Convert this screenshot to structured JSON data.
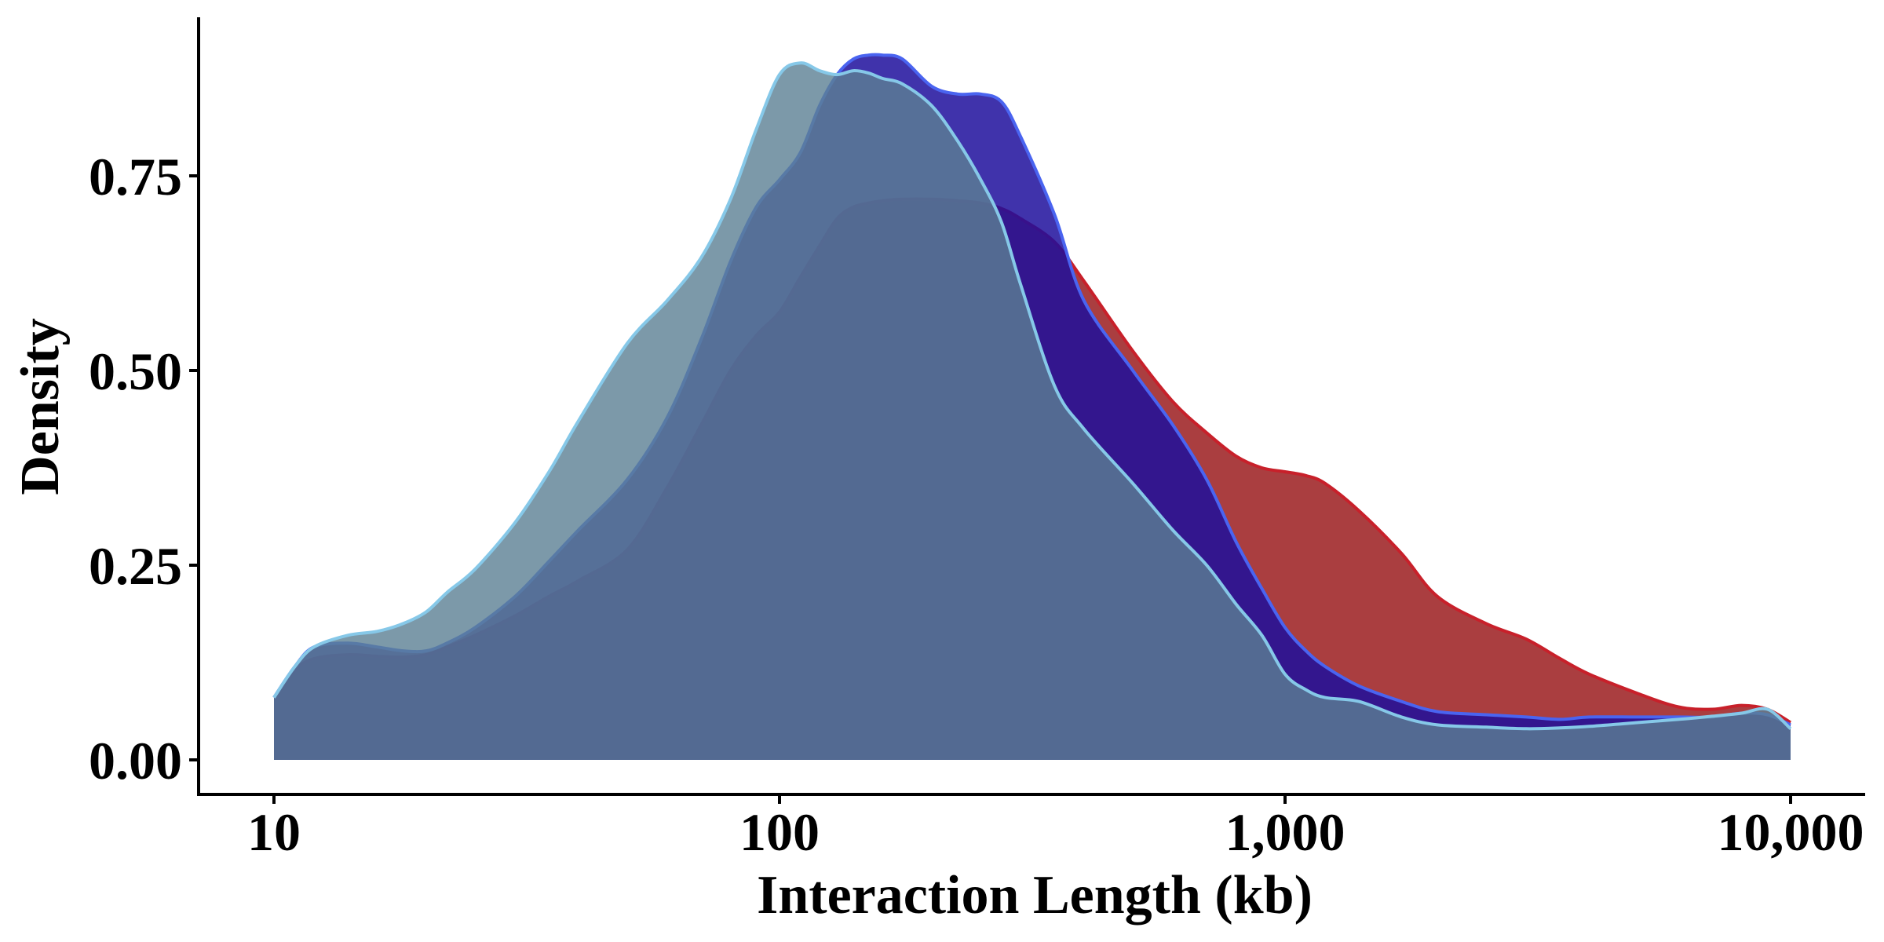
{
  "chart_data": {
    "type": "area",
    "title": "",
    "xlabel": "Interaction Length (kb)",
    "ylabel": "Density",
    "x_scale": "log10",
    "xlim": [
      10,
      10000
    ],
    "ylim": [
      0,
      0.92
    ],
    "x_ticks": [
      10,
      100,
      1000,
      10000
    ],
    "x_tick_labels": [
      "10",
      "100",
      "1,000",
      "10,000"
    ],
    "y_ticks": [
      0,
      0.25,
      0.5,
      0.75
    ],
    "y_tick_labels": [
      "0.00",
      "0.25",
      "0.50",
      "0.75"
    ],
    "grid": false,
    "legend": "none",
    "x": [
      10,
      11,
      12,
      14,
      16,
      18,
      20,
      22,
      25,
      30,
      35,
      40,
      50,
      60,
      70,
      80,
      90,
      100,
      110,
      120,
      130,
      140,
      150,
      160,
      175,
      200,
      225,
      250,
      275,
      300,
      350,
      400,
      500,
      600,
      700,
      800,
      900,
      1000,
      1100,
      1200,
      1400,
      1700,
      2000,
      2500,
      3000,
      3500,
      4000,
      5000,
      6000,
      7000,
      8000,
      9000,
      10000
    ],
    "series": [
      {
        "fill": "#9b1c1f",
        "stroke": "#c8202a",
        "fill_opacity": 0.85,
        "values": [
          0.08,
          0.115,
          0.13,
          0.135,
          0.133,
          0.132,
          0.135,
          0.145,
          0.16,
          0.185,
          0.21,
          0.23,
          0.27,
          0.35,
          0.43,
          0.5,
          0.545,
          0.575,
          0.62,
          0.66,
          0.695,
          0.71,
          0.715,
          0.718,
          0.72,
          0.72,
          0.718,
          0.715,
          0.708,
          0.695,
          0.665,
          0.615,
          0.525,
          0.46,
          0.42,
          0.39,
          0.375,
          0.37,
          0.365,
          0.355,
          0.32,
          0.265,
          0.21,
          0.175,
          0.155,
          0.13,
          0.11,
          0.085,
          0.068,
          0.065,
          0.07,
          0.065,
          0.048
        ]
      },
      {
        "fill": "#1e0f9c",
        "stroke": "#4a64f0",
        "fill_opacity": 0.85,
        "values": [
          0.08,
          0.12,
          0.145,
          0.15,
          0.145,
          0.14,
          0.14,
          0.15,
          0.17,
          0.21,
          0.255,
          0.295,
          0.36,
          0.44,
          0.54,
          0.64,
          0.71,
          0.745,
          0.78,
          0.84,
          0.88,
          0.9,
          0.905,
          0.905,
          0.9,
          0.865,
          0.855,
          0.855,
          0.845,
          0.8,
          0.7,
          0.59,
          0.5,
          0.43,
          0.36,
          0.28,
          0.22,
          0.17,
          0.14,
          0.12,
          0.095,
          0.075,
          0.062,
          0.058,
          0.055,
          0.052,
          0.055,
          0.055,
          0.055,
          0.055,
          0.06,
          0.058,
          0.045
        ]
      },
      {
        "fill": "#5b8093",
        "stroke": "#86c8e8",
        "fill_opacity": 0.8,
        "values": [
          0.08,
          0.12,
          0.145,
          0.16,
          0.165,
          0.175,
          0.19,
          0.215,
          0.245,
          0.305,
          0.37,
          0.435,
          0.535,
          0.59,
          0.645,
          0.72,
          0.81,
          0.88,
          0.895,
          0.885,
          0.88,
          0.885,
          0.882,
          0.875,
          0.868,
          0.84,
          0.795,
          0.745,
          0.69,
          0.61,
          0.48,
          0.425,
          0.355,
          0.295,
          0.25,
          0.2,
          0.16,
          0.11,
          0.09,
          0.08,
          0.075,
          0.055,
          0.045,
          0.042,
          0.04,
          0.041,
          0.043,
          0.048,
          0.052,
          0.056,
          0.06,
          0.065,
          0.04
        ]
      }
    ]
  }
}
